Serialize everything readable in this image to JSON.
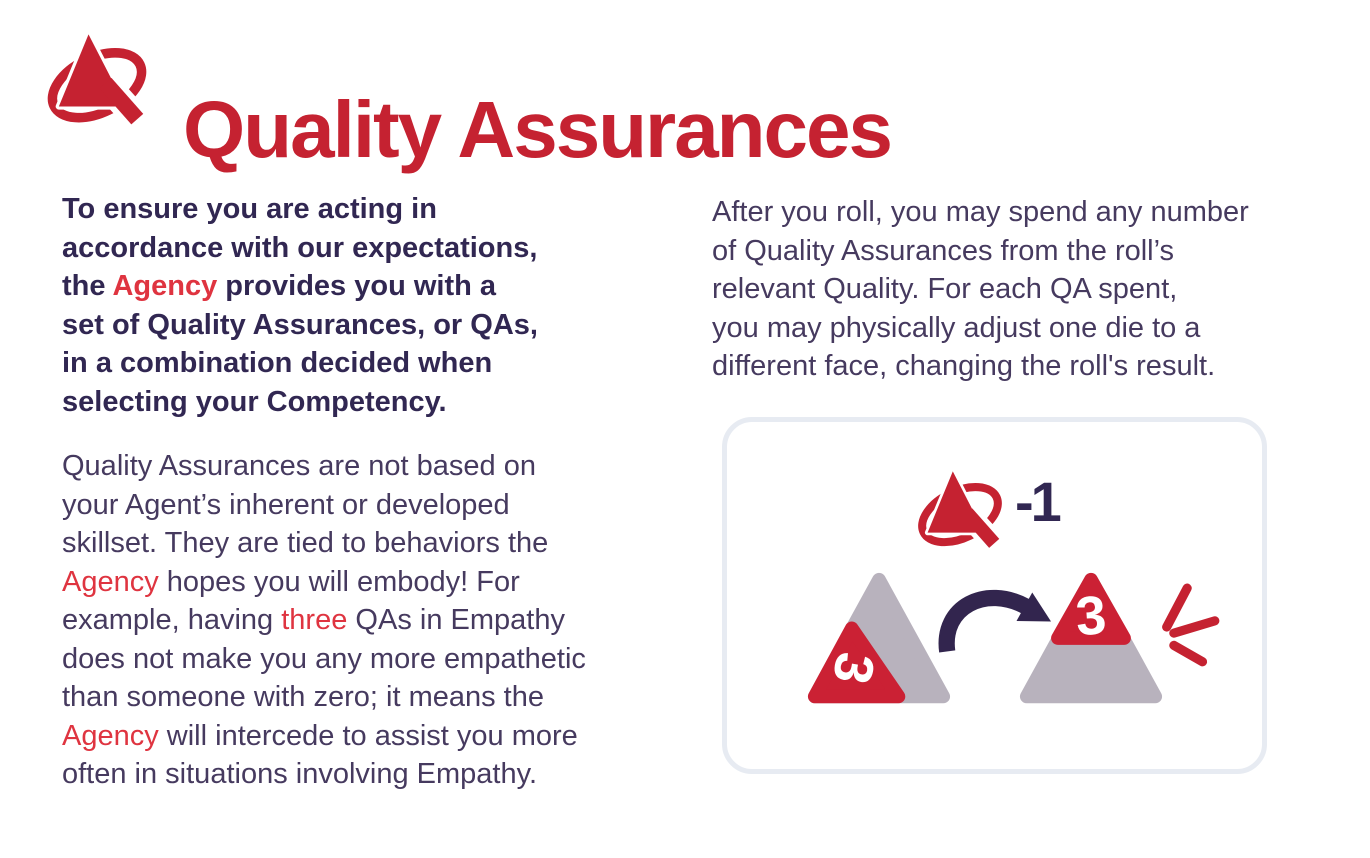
{
  "colors": {
    "title_red": "#C52231",
    "accent_red": "#DF3440",
    "text_dark": "#463A5F",
    "text_bold": "#312752",
    "die_red": "#CB2134",
    "die_gray": "#B8B2BD",
    "arrow_purple": "#32254E",
    "box_border": "#E7EBF2",
    "die_face_text": "#FFFFFF"
  },
  "header": {
    "title": "Quality Assurances",
    "logo_icon": "agency-q-logo-icon"
  },
  "left_column": {
    "intro_lines": [
      [
        {
          "t": "To ensure you are acting in"
        }
      ],
      [
        {
          "t": "accordance with our expectations,"
        }
      ],
      [
        {
          "t": "the "
        },
        {
          "t": "Agency",
          "c": "accent"
        },
        {
          "t": " provides you with a"
        }
      ],
      [
        {
          "t": "set of Quality Assurances, or QAs,"
        }
      ],
      [
        {
          "t": "in a combination decided when"
        }
      ],
      [
        {
          "t": "selecting your Competency."
        }
      ]
    ],
    "body_lines": [
      [
        {
          "t": "Quality Assurances are not based on"
        }
      ],
      [
        {
          "t": "your Agent’s inherent or developed"
        }
      ],
      [
        {
          "t": "skillset. They are tied to behaviors the"
        }
      ],
      [
        {
          "t": "Agency",
          "c": "accent"
        },
        {
          "t": " hopes you will embody! For"
        }
      ],
      [
        {
          "t": "example, having "
        },
        {
          "t": "three",
          "c": "accent"
        },
        {
          "t": " QAs in Empathy"
        }
      ],
      [
        {
          "t": "does not make you any more empathetic"
        }
      ],
      [
        {
          "t": "than someone with zero; it means the"
        }
      ],
      [
        {
          "t": "Agency",
          "c": "accent"
        },
        {
          "t": " will intercede to assist you more"
        }
      ],
      [
        {
          "t": "often in situations involving Empathy."
        }
      ]
    ]
  },
  "right_column": {
    "para_lines": [
      [
        {
          "t": "After you roll, you may spend any number"
        }
      ],
      [
        {
          "t": "of Quality Assurances from the roll’s"
        }
      ],
      [
        {
          "t": "relevant Quality. For each QA spent,"
        }
      ],
      [
        {
          "t": "you may physically adjust one die to a"
        }
      ],
      [
        {
          "t": "different face, changing the roll's result."
        }
      ]
    ],
    "illustration": {
      "cost_label": "-1",
      "die_before_value": "3",
      "die_after_value": "3",
      "logo_icon": "agency-q-logo-icon",
      "arrow_icon": "curved-adjust-arrow-icon",
      "sparkle_icon": "emphasis-lines-icon",
      "die_before_icon": "d4-die-before-icon",
      "die_after_icon": "d4-die-after-icon"
    }
  }
}
